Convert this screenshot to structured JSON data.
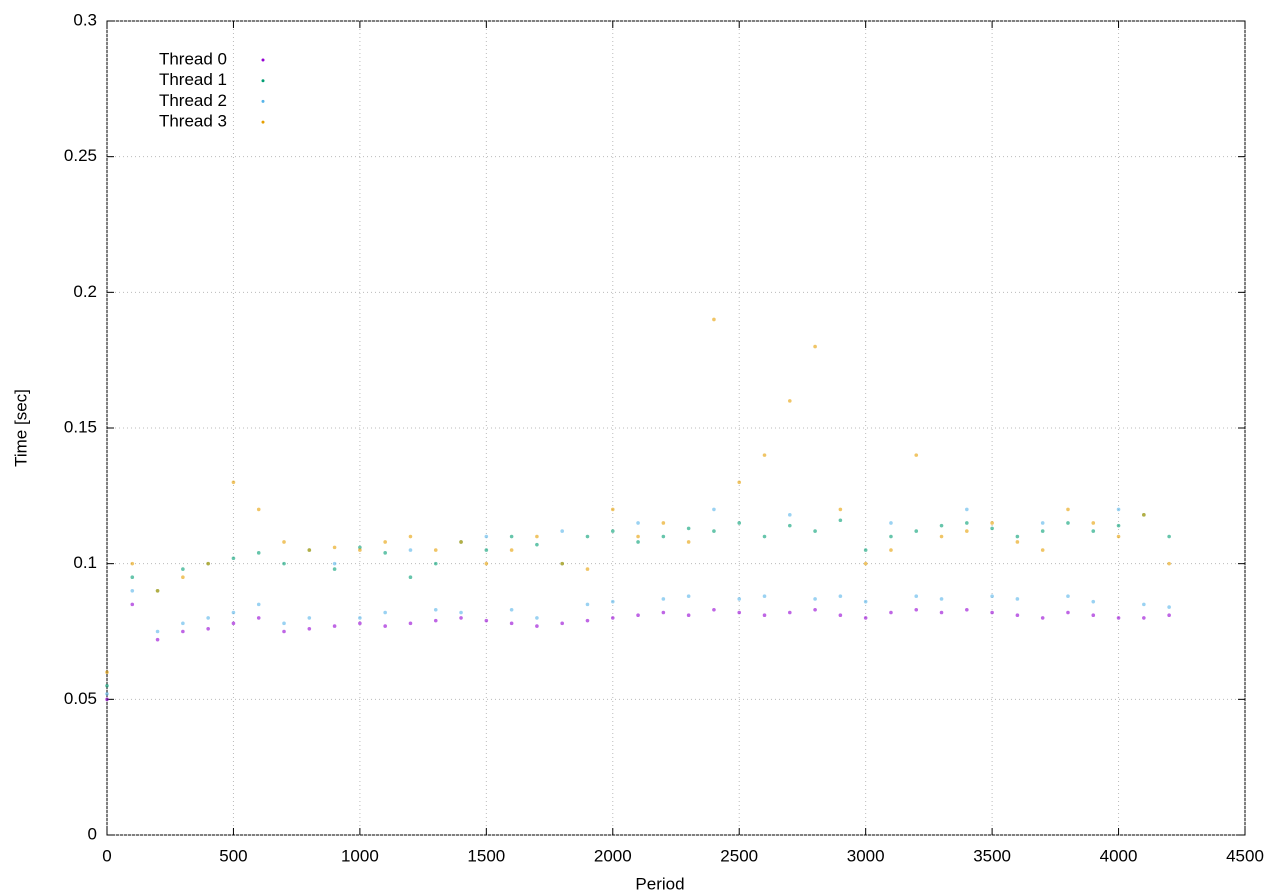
{
  "chart_data": {
    "type": "scatter",
    "x_label": "Period",
    "y_label": "Time [sec]",
    "x": [
      0,
      100,
      200,
      300,
      400,
      500,
      600,
      700,
      800,
      900,
      1000,
      1100,
      1200,
      1300,
      1400,
      1500,
      1600,
      1700,
      1800,
      1900,
      2000,
      2100,
      2200,
      2300,
      2400,
      2500,
      2600,
      2700,
      2800,
      2900,
      3000,
      3100,
      3200,
      3300,
      3400,
      3500,
      3600,
      3700,
      3800,
      3900,
      4000,
      4100,
      4200
    ],
    "series": [
      {
        "name": "Thread 0",
        "color": "#9400d3",
        "values": [
          0.05,
          0.085,
          0.072,
          0.075,
          0.076,
          0.078,
          0.08,
          0.075,
          0.076,
          0.077,
          0.078,
          0.077,
          0.078,
          0.079,
          0.08,
          0.079,
          0.078,
          0.077,
          0.078,
          0.079,
          0.08,
          0.081,
          0.082,
          0.081,
          0.083,
          0.082,
          0.081,
          0.082,
          0.083,
          0.081,
          0.08,
          0.082,
          0.083,
          0.082,
          0.083,
          0.082,
          0.081,
          0.08,
          0.082,
          0.081,
          0.08,
          0.08,
          0.081
        ]
      },
      {
        "name": "Thread 1",
        "color": "#009e73",
        "values": [
          0.055,
          0.095,
          0.09,
          0.098,
          0.1,
          0.102,
          0.104,
          0.1,
          0.105,
          0.098,
          0.106,
          0.104,
          0.095,
          0.1,
          0.108,
          0.105,
          0.11,
          0.107,
          0.1,
          0.11,
          0.112,
          0.108,
          0.11,
          0.113,
          0.112,
          0.115,
          0.11,
          0.114,
          0.112,
          0.116,
          0.105,
          0.11,
          0.112,
          0.114,
          0.115,
          0.113,
          0.11,
          0.112,
          0.115,
          0.112,
          0.114,
          0.118,
          0.11
        ]
      },
      {
        "name": "Thread 2",
        "color": "#56b4e9",
        "values": [
          0.052,
          0.09,
          0.075,
          0.078,
          0.08,
          0.082,
          0.085,
          0.078,
          0.08,
          0.1,
          0.08,
          0.082,
          0.105,
          0.083,
          0.082,
          0.11,
          0.083,
          0.08,
          0.112,
          0.085,
          0.086,
          0.115,
          0.087,
          0.088,
          0.12,
          0.087,
          0.088,
          0.118,
          0.087,
          0.088,
          0.086,
          0.115,
          0.088,
          0.087,
          0.12,
          0.088,
          0.087,
          0.115,
          0.088,
          0.086,
          0.12,
          0.085,
          0.084
        ]
      },
      {
        "name": "Thread 3",
        "color": "#e69f00",
        "values": [
          0.06,
          0.1,
          0.09,
          0.095,
          0.1,
          0.13,
          0.12,
          0.108,
          0.105,
          0.106,
          0.105,
          0.108,
          0.11,
          0.105,
          0.108,
          0.1,
          0.105,
          0.11,
          0.1,
          0.098,
          0.12,
          0.11,
          0.115,
          0.108,
          0.19,
          0.13,
          0.14,
          0.16,
          0.18,
          0.12,
          0.1,
          0.105,
          0.14,
          0.11,
          0.112,
          0.115,
          0.108,
          0.105,
          0.12,
          0.115,
          0.11,
          0.118,
          0.1
        ]
      }
    ],
    "xlim": [
      0,
      4500
    ],
    "xticks": [
      0,
      500,
      1000,
      1500,
      2000,
      2500,
      3000,
      3500,
      4000,
      4500
    ],
    "ylim": [
      0,
      0.3
    ],
    "yticks": [
      0,
      0.05,
      0.1,
      0.15,
      0.2,
      0.25,
      0.3
    ],
    "grid": true,
    "legend": "top-left"
  }
}
